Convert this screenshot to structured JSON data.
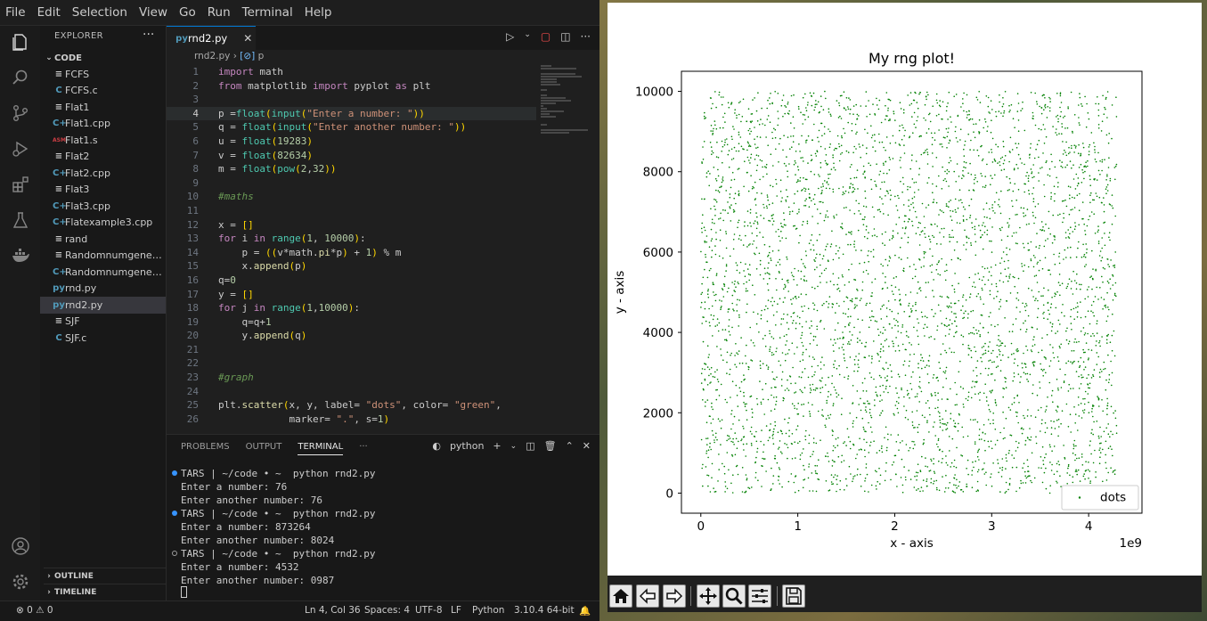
{
  "vscode": {
    "menu": [
      "File",
      "Edit",
      "Selection",
      "View",
      "Go",
      "Run",
      "Terminal",
      "Help"
    ],
    "activity_icons": [
      "explorer-icon",
      "search-icon",
      "source-control-icon",
      "run-debug-icon",
      "extensions-icon",
      "testing-icon",
      "docker-icon",
      "account-icon",
      "manage-gear-icon"
    ],
    "sidebar": {
      "title": "EXPLORER",
      "folder": "CODE",
      "files": [
        {
          "name": "FCFS",
          "icon": "≡",
          "icon_color": "#cccccc"
        },
        {
          "name": "FCFS.c",
          "icon": "C",
          "icon_color": "#519aba"
        },
        {
          "name": "Flat1",
          "icon": "≡",
          "icon_color": "#cccccc"
        },
        {
          "name": "Flat1.cpp",
          "icon": "C+",
          "icon_color": "#519aba"
        },
        {
          "name": "Flat1.s",
          "icon": "ASM",
          "icon_color": "#cc3e44"
        },
        {
          "name": "Flat2",
          "icon": "≡",
          "icon_color": "#cccccc"
        },
        {
          "name": "Flat2.cpp",
          "icon": "C+",
          "icon_color": "#519aba"
        },
        {
          "name": "Flat3",
          "icon": "≡",
          "icon_color": "#cccccc"
        },
        {
          "name": "Flat3.cpp",
          "icon": "C+",
          "icon_color": "#519aba"
        },
        {
          "name": "Flatexample3.cpp",
          "icon": "C+",
          "icon_color": "#519aba"
        },
        {
          "name": "rand",
          "icon": "≡",
          "icon_color": "#cccccc"
        },
        {
          "name": "Randomnumgenera...",
          "icon": "≡",
          "icon_color": "#cccccc"
        },
        {
          "name": "Randomnumgenera...",
          "icon": "C+",
          "icon_color": "#519aba"
        },
        {
          "name": "rnd.py",
          "icon": "py",
          "icon_color": "#519aba"
        },
        {
          "name": "rnd2.py",
          "icon": "py",
          "icon_color": "#519aba",
          "active": true
        },
        {
          "name": "SJF",
          "icon": "≡",
          "icon_color": "#cccccc"
        },
        {
          "name": "SJF.c",
          "icon": "C",
          "icon_color": "#519aba"
        }
      ],
      "outline": "OUTLINE",
      "timeline": "TIMELINE"
    },
    "editor": {
      "tab": "rnd2.py",
      "breadcrumb_file": "rnd2.py",
      "breadcrumb_symbol": "p",
      "lines": [
        {
          "n": "1",
          "text": "import math"
        },
        {
          "n": "2",
          "text": "from matplotlib import pyplot as plt"
        },
        {
          "n": "3",
          "text": ""
        },
        {
          "n": "4",
          "text": "p =float(input(\"Enter a number: \"))",
          "current": true
        },
        {
          "n": "5",
          "text": "q = float(input(\"Enter another number: \"))"
        },
        {
          "n": "6",
          "text": "u = float(19283)"
        },
        {
          "n": "7",
          "text": "v = float(82634)"
        },
        {
          "n": "8",
          "text": "m = float(pow(2,32))"
        },
        {
          "n": "9",
          "text": ""
        },
        {
          "n": "10",
          "text": "#maths",
          "comment": true
        },
        {
          "n": "11",
          "text": ""
        },
        {
          "n": "12",
          "text": "x = []"
        },
        {
          "n": "13",
          "text": "for i in range(1, 10000):"
        },
        {
          "n": "14",
          "text": "    p = ((v*math.pi*p) + 1) % m"
        },
        {
          "n": "15",
          "text": "    x.append(p)"
        },
        {
          "n": "16",
          "text": "q=0"
        },
        {
          "n": "17",
          "text": "y = []"
        },
        {
          "n": "18",
          "text": "for j in range(1,10000):"
        },
        {
          "n": "19",
          "text": "    q=q+1"
        },
        {
          "n": "20",
          "text": "    y.append(q)"
        },
        {
          "n": "21",
          "text": ""
        },
        {
          "n": "22",
          "text": ""
        },
        {
          "n": "23",
          "text": "#graph",
          "comment": true
        },
        {
          "n": "24",
          "text": ""
        },
        {
          "n": "25",
          "text": "plt.scatter(x, y, label= \"dots\", color= \"green\","
        },
        {
          "n": "26",
          "text": "            marker= \".\", s=1)"
        }
      ]
    },
    "panel": {
      "tabs": [
        "PROBLEMS",
        "OUTPUT",
        "TERMINAL",
        "···"
      ],
      "active_tab": "TERMINAL",
      "shell": "python",
      "terminal": [
        {
          "text": "TARS | ~/code • ~  python rnd2.py",
          "marker": "filled"
        },
        {
          "text": "Enter a number: 76"
        },
        {
          "text": "Enter another number: 76"
        },
        {
          "text": "TARS | ~/code • ~  python rnd2.py",
          "marker": "filled"
        },
        {
          "text": "Enter a number: 873264"
        },
        {
          "text": "Enter another number: 8024"
        },
        {
          "text": "TARS | ~/code • ~  python rnd2.py",
          "marker": "hollow"
        },
        {
          "text": "Enter a number: 4532"
        },
        {
          "text": "Enter another number: 0987"
        }
      ]
    },
    "statusbar": {
      "problems": "⊗ 0 ⚠ 0",
      "position": "Ln 4, Col 36",
      "spaces": "Spaces: 4",
      "encoding": "UTF-8",
      "eol": "LF",
      "language": "Python",
      "interpreter": "3.10.4 64-bit"
    }
  },
  "chart_data": {
    "type": "scatter",
    "title": "My rng plot!",
    "xlabel": "x - axis",
    "ylabel": "y - axis",
    "x_offset_label": "1e9",
    "xlim": [
      -0.2,
      4.55
    ],
    "ylim": [
      -500,
      10500
    ],
    "xticks": [
      0,
      1,
      2,
      3,
      4
    ],
    "xtick_labels": [
      "0",
      "1",
      "2",
      "3",
      "4"
    ],
    "yticks": [
      0,
      2000,
      4000,
      6000,
      8000,
      10000
    ],
    "ytick_labels": [
      "0",
      "2000",
      "4000",
      "6000",
      "8000",
      "10000"
    ],
    "x_range": [
      0,
      4.29
    ],
    "y_range": [
      1,
      9999
    ],
    "series": [
      {
        "name": "dots",
        "color": "green",
        "marker": "."
      }
    ],
    "legend": "lower-right",
    "grid": false
  },
  "toolbar_icons": [
    "home-icon",
    "back-icon",
    "forward-icon",
    "pan-icon",
    "zoom-icon",
    "configure-subplots-icon",
    "save-icon"
  ]
}
